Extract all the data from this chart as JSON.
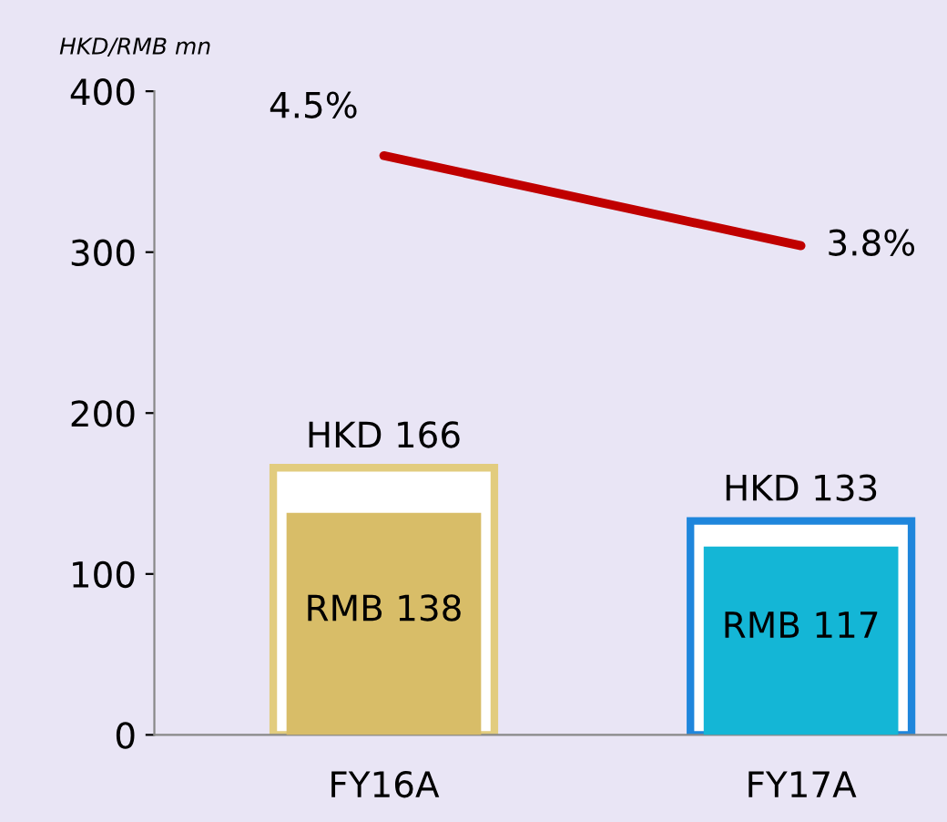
{
  "chart_data": {
    "type": "bar",
    "ylabel": "HKD/RMB mn",
    "categories": [
      "FY16A",
      "FY17A"
    ],
    "ylim": [
      0,
      400
    ],
    "yticks": [
      0,
      100,
      200,
      300,
      400
    ],
    "y2lim": [
      0,
      5
    ],
    "series": [
      {
        "colors": [
          "#e2cc7e",
          "#1f86dc"
        ],
        "values": [
          166,
          133
        ],
        "value_labels": [
          "HKD 166",
          "HKD 133"
        ]
      },
      {
        "colors": [
          "#d8bd68",
          "#14b6d6"
        ],
        "values": [
          138,
          117
        ],
        "value_labels": [
          "RMB 138",
          "RMB 117"
        ]
      },
      {
        "type": "line",
        "axis": "y2",
        "color": "#c00000",
        "values": [
          4.5,
          3.8
        ],
        "value_labels": [
          "4.5%",
          "3.8%"
        ]
      }
    ]
  }
}
